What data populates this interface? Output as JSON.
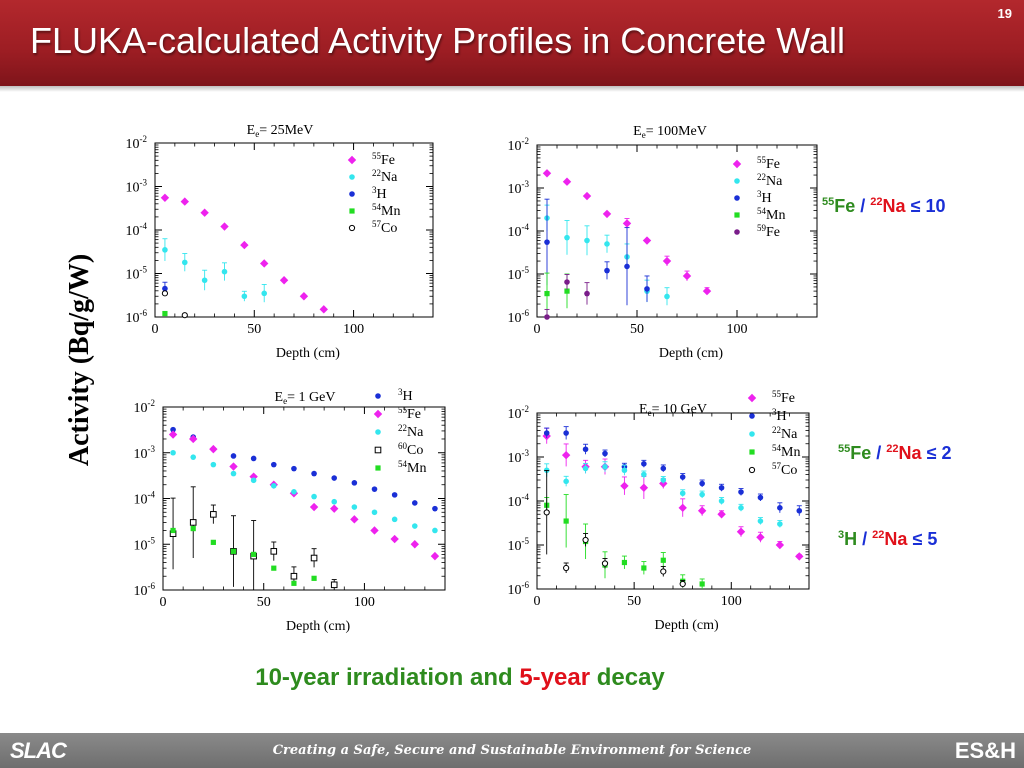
{
  "slide": {
    "title": "FLUKA-calculated Activity Profiles in Concrete Wall",
    "page_number": "19",
    "y_axis_label": "Activity (Bq/g/W)",
    "subtitle_parts": [
      "10-year irradiation and ",
      "5-year",
      " decay"
    ],
    "footer": {
      "logo_left": "SLAC",
      "tagline": "Creating a Safe, Secure and Sustainable Environment for Science",
      "logo_right": "ES&H"
    }
  },
  "colors": {
    "title_bar": "#a3232a",
    "Fe55": "#ee22ee",
    "Na22": "#33e6ee",
    "H3": "#1a2fd6",
    "Mn54": "#22dd22",
    "Co57": "#000000",
    "Co60": "#000000",
    "Fe59": "#7a1d8a",
    "ratio_green": "#2e8b1e",
    "ratio_red": "#e0101a",
    "ratio_blue": "#1a2fd6"
  },
  "ratios": [
    {
      "num_mass": "55",
      "num": "Fe",
      "den_mass": "22",
      "den": "Na",
      "op": "≤ 10"
    },
    {
      "num_mass": "55",
      "num": "Fe",
      "den_mass": "22",
      "den": "Na",
      "op": "≤ 2"
    },
    {
      "num_mass": "3",
      "num": "H",
      "den_mass": "22",
      "den": "Na",
      "op": "≤ 5"
    }
  ],
  "chart_data": [
    {
      "type": "scatter",
      "title_main": "E",
      "title_sub": "e",
      "title_rest": "= 25MeV",
      "xlabel": "Depth (cm)",
      "xlim": [
        0,
        140
      ],
      "xticks": [
        "0",
        "50",
        "100"
      ],
      "ylim_exp": [
        -6,
        -2
      ],
      "yticks": [
        "-2",
        "-3",
        "-4",
        "-5",
        "-6"
      ],
      "log_y": true,
      "legend": [
        {
          "mass": "55",
          "el": "Fe",
          "key": "Fe55",
          "marker": "diamond"
        },
        {
          "mass": "22",
          "el": "Na",
          "key": "Na22",
          "marker": "circle"
        },
        {
          "mass": "3",
          "el": "H",
          "key": "H3",
          "marker": "circle"
        },
        {
          "mass": "54",
          "el": "Mn",
          "key": "Mn54",
          "marker": "square"
        },
        {
          "mass": "57",
          "el": "Co",
          "key": "Co57",
          "marker": "open-circle"
        }
      ],
      "series": [
        {
          "name": "55Fe",
          "key": "Fe55",
          "marker": "diamond",
          "x": [
            5,
            15,
            25,
            35,
            45,
            55,
            65,
            75,
            85
          ],
          "y": [
            0.00055,
            0.00045,
            0.00025,
            0.00012,
            4.5e-05,
            1.7e-05,
            7e-06,
            3e-06,
            1.5e-06
          ]
        },
        {
          "name": "22Na",
          "key": "Na22",
          "marker": "circle",
          "x": [
            5,
            15,
            25,
            35,
            45,
            55
          ],
          "y": [
            3.5e-05,
            1.8e-05,
            7e-06,
            1.1e-05,
            3e-06,
            3.5e-06
          ],
          "err": [
            1.8,
            1.6,
            1.7,
            1.6,
            1.3,
            1.6
          ]
        },
        {
          "name": "3H",
          "key": "H3",
          "marker": "circle",
          "x": [
            5
          ],
          "y": [
            4.5e-06
          ],
          "err": [
            1.4
          ]
        },
        {
          "name": "54Mn",
          "key": "Mn54",
          "marker": "square",
          "x": [
            5
          ],
          "y": [
            1.2e-06
          ]
        },
        {
          "name": "57Co",
          "key": "Co57",
          "marker": "open-circle",
          "x": [
            5,
            15
          ],
          "y": [
            3.5e-06,
            1.1e-06
          ]
        }
      ]
    },
    {
      "type": "scatter",
      "title_main": "E",
      "title_sub": "e",
      "title_rest": "= 100MeV",
      "xlabel": "Depth (cm)",
      "xlim": [
        0,
        140
      ],
      "xticks": [
        "0",
        "50",
        "100"
      ],
      "ylim_exp": [
        -6,
        -2
      ],
      "yticks": [
        "-2",
        "-3",
        "-4",
        "-5",
        "-6"
      ],
      "log_y": true,
      "legend": [
        {
          "mass": "55",
          "el": "Fe",
          "key": "Fe55",
          "marker": "diamond"
        },
        {
          "mass": "22",
          "el": "Na",
          "key": "Na22",
          "marker": "circle"
        },
        {
          "mass": "3",
          "el": "H",
          "key": "H3",
          "marker": "circle"
        },
        {
          "mass": "54",
          "el": "Mn",
          "key": "Mn54",
          "marker": "square"
        },
        {
          "mass": "59",
          "el": "Fe",
          "key": "Fe59",
          "marker": "circle"
        }
      ],
      "series": [
        {
          "name": "55Fe",
          "key": "Fe55",
          "marker": "diamond",
          "x": [
            5,
            15,
            25,
            35,
            45,
            55,
            65,
            75,
            85
          ],
          "y": [
            0.0022,
            0.0014,
            0.00065,
            0.00025,
            0.00015,
            6e-05,
            2e-05,
            9e-06,
            4e-06
          ],
          "err": [
            1,
            1,
            1,
            1,
            1.3,
            1,
            1.3,
            1.3,
            1.2
          ]
        },
        {
          "name": "22Na",
          "key": "Na22",
          "marker": "circle",
          "x": [
            5,
            15,
            25,
            35,
            45,
            55,
            65
          ],
          "y": [
            0.0002,
            7e-05,
            6e-05,
            5e-05,
            2.5e-05,
            4e-06,
            3e-06
          ],
          "err": [
            2,
            2.5,
            2.2,
            1.6,
            2,
            1.8,
            1.6
          ]
        },
        {
          "name": "3H",
          "key": "H3",
          "marker": "circle",
          "x": [
            5,
            35,
            45,
            55
          ],
          "y": [
            5.5e-05,
            1.2e-05,
            1.5e-05,
            4.5e-06
          ],
          "err": [
            10,
            1.6,
            8,
            2
          ]
        },
        {
          "name": "54Mn",
          "key": "Mn54",
          "marker": "square",
          "x": [
            5,
            15
          ],
          "y": [
            3.5e-06,
            4e-06
          ],
          "err": [
            3,
            2.5
          ]
        },
        {
          "name": "59Fe",
          "key": "Fe59",
          "marker": "circle",
          "x": [
            5,
            15,
            25
          ],
          "y": [
            1e-06,
            6.5e-06,
            3.5e-06
          ],
          "err": [
            1.5,
            1.5,
            1.8
          ]
        }
      ]
    },
    {
      "type": "scatter",
      "title_main": "E",
      "title_sub": "e",
      "title_rest": "= 1 GeV",
      "xlabel": "Depth (cm)",
      "xlim": [
        0,
        140
      ],
      "xticks": [
        "0",
        "50",
        "100"
      ],
      "ylim_exp": [
        -6,
        -2
      ],
      "yticks": [
        "-2",
        "-3",
        "-4",
        "-5",
        "-6"
      ],
      "log_y": true,
      "legend": [
        {
          "mass": "3",
          "el": "H",
          "key": "H3",
          "marker": "circle"
        },
        {
          "mass": "55",
          "el": "Fe",
          "key": "Fe55",
          "marker": "diamond"
        },
        {
          "mass": "22",
          "el": "Na",
          "key": "Na22",
          "marker": "circle"
        },
        {
          "mass": "60",
          "el": "Co",
          "key": "Co60",
          "marker": "open-square"
        },
        {
          "mass": "54",
          "el": "Mn",
          "key": "Mn54",
          "marker": "square"
        }
      ],
      "series": [
        {
          "name": "3H",
          "key": "H3",
          "marker": "circle",
          "x": [
            5,
            15,
            25,
            35,
            45,
            55,
            65,
            75,
            85,
            95,
            105,
            115,
            125,
            135
          ],
          "y": [
            0.0032,
            0.0022,
            0.0012,
            0.00085,
            0.00075,
            0.00055,
            0.00045,
            0.00035,
            0.00028,
            0.00022,
            0.00016,
            0.00012,
            8e-05,
            6e-05
          ]
        },
        {
          "name": "55Fe",
          "key": "Fe55",
          "marker": "diamond",
          "x": [
            5,
            15,
            25,
            35,
            45,
            55,
            65,
            75,
            85,
            95,
            105,
            115,
            125,
            135
          ],
          "y": [
            0.0025,
            0.002,
            0.0012,
            0.0005,
            0.0003,
            0.0002,
            0.00013,
            6.5e-05,
            6e-05,
            3.5e-05,
            2e-05,
            1.3e-05,
            1e-05,
            5.5e-06
          ]
        },
        {
          "name": "22Na",
          "key": "Na22",
          "marker": "circle",
          "x": [
            5,
            15,
            25,
            35,
            45,
            55,
            65,
            75,
            85,
            95,
            105,
            115,
            125,
            135
          ],
          "y": [
            0.001,
            0.0008,
            0.00055,
            0.00035,
            0.00025,
            0.00019,
            0.00014,
            0.00011,
            8.5e-05,
            6.5e-05,
            5e-05,
            3.5e-05,
            2.5e-05,
            2e-05
          ]
        },
        {
          "name": "60Co",
          "key": "Co60",
          "marker": "open-square",
          "x": [
            5,
            15,
            25,
            35,
            45,
            55,
            65,
            75,
            85
          ],
          "y": [
            1.7e-05,
            3e-05,
            4.5e-05,
            7e-06,
            5.5e-06,
            7e-06,
            2e-06,
            5e-06,
            1.3e-06
          ],
          "err": [
            6,
            6,
            1.6,
            6,
            6,
            1.6,
            1.6,
            1.6,
            1.3
          ]
        },
        {
          "name": "54Mn",
          "key": "Mn54",
          "marker": "square",
          "x": [
            5,
            15,
            25,
            35,
            45,
            55,
            65,
            75
          ],
          "y": [
            2e-05,
            2.2e-05,
            1.1e-05,
            7e-06,
            6e-06,
            3e-06,
            1.4e-06,
            1.8e-06
          ]
        }
      ]
    },
    {
      "type": "scatter",
      "title_main": "E",
      "title_sub": "e",
      "title_rest": "= 10 GeV",
      "xlabel": "Depth (cm)",
      "xlim": [
        0,
        140
      ],
      "xticks": [
        "0",
        "50",
        "100"
      ],
      "ylim_exp": [
        -6,
        -2
      ],
      "yticks": [
        "-2",
        "-3",
        "-4",
        "-5",
        "-6"
      ],
      "log_y": true,
      "legend": [
        {
          "mass": "55",
          "el": "Fe",
          "key": "Fe55",
          "marker": "diamond"
        },
        {
          "mass": "3",
          "el": "H",
          "key": "H3",
          "marker": "circle"
        },
        {
          "mass": "22",
          "el": "Na",
          "key": "Na22",
          "marker": "circle"
        },
        {
          "mass": "54",
          "el": "Mn",
          "key": "Mn54",
          "marker": "square"
        },
        {
          "mass": "57",
          "el": "Co",
          "key": "Co57",
          "marker": "open-circle"
        }
      ],
      "series": [
        {
          "name": "55Fe",
          "key": "Fe55",
          "marker": "diamond",
          "x": [
            5,
            15,
            25,
            35,
            45,
            55,
            65,
            75,
            85,
            95,
            105,
            115,
            125,
            135
          ],
          "y": [
            0.003,
            0.0011,
            0.0006,
            0.0006,
            0.00022,
            0.0002,
            0.00025,
            7e-05,
            6e-05,
            5e-05,
            2e-05,
            1.5e-05,
            1e-05,
            5.5e-06
          ],
          "err": [
            1.5,
            1.8,
            1.4,
            1.5,
            1.6,
            1.8,
            1.3,
            1.6,
            1.3,
            1.2,
            1.3,
            1.3,
            1.2,
            1.1
          ]
        },
        {
          "name": "3H",
          "key": "H3",
          "marker": "circle",
          "x": [
            5,
            15,
            25,
            35,
            45,
            55,
            65,
            75,
            85,
            95,
            105,
            115,
            125,
            135
          ],
          "y": [
            0.0035,
            0.0035,
            0.0015,
            0.0012,
            0.0006,
            0.0007,
            0.00055,
            0.00035,
            0.00025,
            0.0002,
            0.00016,
            0.00012,
            7e-05,
            6e-05
          ],
          "err": [
            1.3,
            1.4,
            1.3,
            1.2,
            1.2,
            1.2,
            1.2,
            1.2,
            1.2,
            1.2,
            1.2,
            1.2,
            1.3,
            1.3
          ]
        },
        {
          "name": "22Na",
          "key": "Na22",
          "marker": "circle",
          "x": [
            5,
            15,
            25,
            35,
            45,
            55,
            65,
            75,
            85,
            95,
            105,
            115,
            125
          ],
          "y": [
            0.0005,
            0.00028,
            0.00055,
            0.0006,
            0.0005,
            0.0004,
            0.0003,
            0.00015,
            0.00014,
            0.0001,
            7e-05,
            3.5e-05,
            3e-05
          ],
          "err": [
            1.4,
            1.3,
            1.3,
            1.3,
            1.3,
            1.2,
            1.2,
            1.2,
            1.2,
            1.2,
            1.2,
            1.2,
            1.2
          ]
        },
        {
          "name": "54Mn",
          "key": "Mn54",
          "marker": "square",
          "x": [
            5,
            15,
            25,
            35,
            45,
            55,
            65,
            75,
            85
          ],
          "y": [
            8e-05,
            3.5e-05,
            1.2e-05,
            3.5e-06,
            4e-06,
            3e-06,
            4.5e-06,
            1.5e-06,
            1.3e-06
          ],
          "err": [
            1.5,
            4,
            2.5,
            2,
            1.4,
            1.4,
            1.5,
            1.4,
            1.3
          ]
        },
        {
          "name": "57Co",
          "key": "Co57",
          "marker": "open-circle",
          "x": [
            5,
            15,
            25,
            35,
            65,
            75
          ],
          "y": [
            5.5e-05,
            3e-06,
            1.3e-05,
            3.8e-06,
            2.5e-06,
            1.3e-06
          ],
          "err": [
            9,
            1.3,
            1.4,
            1.3,
            1.3,
            1.2
          ]
        }
      ]
    }
  ]
}
